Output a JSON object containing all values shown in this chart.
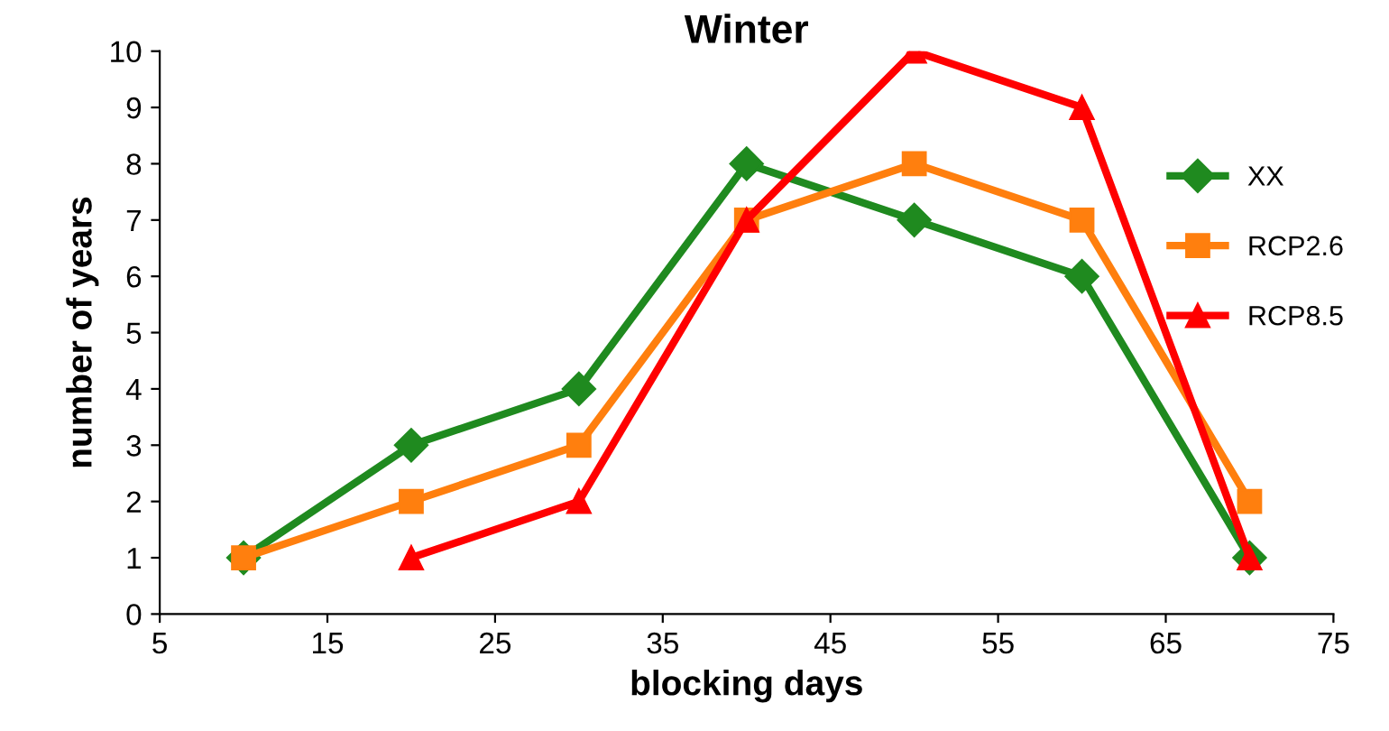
{
  "chart_data": {
    "type": "line",
    "title": "Winter",
    "xlabel": "blocking days",
    "ylabel": "number of years",
    "xlim": [
      5,
      75
    ],
    "xticks": [
      5,
      15,
      25,
      35,
      45,
      55,
      65,
      75
    ],
    "ylim": [
      0,
      10
    ],
    "yticks": [
      0,
      1,
      2,
      3,
      4,
      5,
      6,
      7,
      8,
      9,
      10
    ],
    "grid": false,
    "legend": "right",
    "line_style": "solid",
    "series": [
      {
        "name": "XX",
        "color": "#1f8a1f",
        "marker": "diamond",
        "x": [
          10,
          20,
          30,
          40,
          50,
          60,
          70
        ],
        "values": [
          1,
          3,
          4,
          8,
          7,
          6,
          1
        ]
      },
      {
        "name": "RCP2.6",
        "color": "#ff7f0e",
        "marker": "square",
        "x": [
          10,
          20,
          30,
          40,
          50,
          60,
          70
        ],
        "values": [
          1,
          2,
          3,
          7,
          8,
          7,
          2
        ]
      },
      {
        "name": "RCP8.5",
        "color": "#ff0000",
        "marker": "triangle",
        "x": [
          20,
          30,
          40,
          50,
          60,
          70
        ],
        "values": [
          1,
          2,
          7,
          10,
          9,
          1
        ]
      }
    ]
  }
}
